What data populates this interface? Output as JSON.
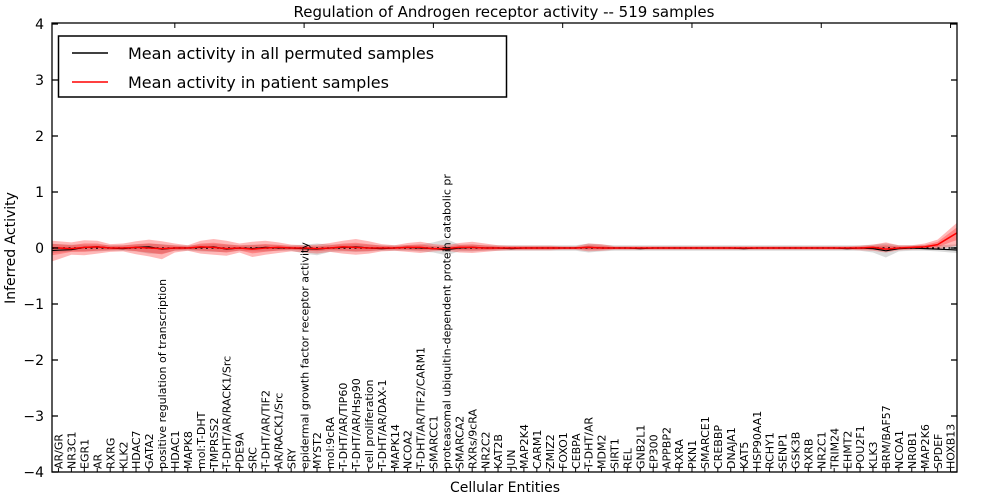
{
  "figure": {
    "background": "#ffffff",
    "frame_color": "#000000"
  },
  "legend": {
    "items": [
      {
        "label": "Mean activity in all permuted samples",
        "color": "#000000"
      },
      {
        "label": "Mean activity in patient samples",
        "color": "#ff0000"
      }
    ]
  },
  "chart_data": {
    "type": "line",
    "title": "Regulation of Androgen receptor activity -- 519 samples",
    "xlabel": "Cellular Entities",
    "ylabel": "Inferred Activity",
    "ylim": [
      -4,
      4
    ],
    "yticks": [
      -4,
      -3,
      -2,
      -1,
      0,
      1,
      2,
      3,
      4
    ],
    "grid": false,
    "legend_position": "upper left",
    "zero_line": true,
    "categories": [
      "AR/GR",
      "NR3C1",
      "EGR1",
      "AR",
      "RXRG",
      "KLK2",
      "HDAC7",
      "GATA2",
      "positive regulation of transcription",
      "HDAC1",
      "MAPK8",
      "mol:T-DHT",
      "TMPRSS2",
      "T-DHT/AR/RACK1/Src",
      "PDE9A",
      "SRC",
      "T-DHT/AR/TIF2",
      "AR/RACK1/Src",
      "SRY",
      "epidermal growth factor receptor activity",
      "MYST2",
      "mol:9cRA",
      "T-DHT/AR/TIP60",
      "T-DHT/AR/Hsp90",
      "cell proliferation",
      "T-DHT/AR/DAX-1",
      "MAPK14",
      "NCOA2",
      "T-DHT/AR/TIF2/CARM1",
      "SMARCC1",
      "proteasomal ubiquitin-dependent protein catabolic pr",
      "SMARCA2",
      "RXRs/9cRA",
      "NR2C2",
      "KAT2B",
      "JUN",
      "MAP2K4",
      "CARM1",
      "ZMIZ2",
      "FOXO1",
      "CEBPA",
      "T-DHT/AR",
      "MDM2",
      "SIRT1",
      "REL",
      "GNB2L1",
      "EP300",
      "APPBP2",
      "RXRA",
      "PKN1",
      "SMARCE1",
      "CREBBP",
      "DNAJA1",
      "KAT5",
      "HSP90AA1",
      "RCHY1",
      "SENP1",
      "GSK3B",
      "RXRB",
      "NR2C1",
      "TRIM24",
      "EHMT2",
      "POU2F1",
      "KLK3",
      "BRM/BAF57",
      "NCOA1",
      "NR0B1",
      "MAP2K6",
      "SPDEF",
      "HOXB13"
    ],
    "series": [
      {
        "name": "Mean activity in all permuted samples",
        "color": "#000000",
        "values": [
          -0.04,
          -0.03,
          0.01,
          0.02,
          0,
          -0.01,
          0.01,
          0.02,
          -0.02,
          0,
          0,
          0.01,
          0.02,
          -0.02,
          0,
          -0.01,
          0.01,
          0,
          0,
          -0.01,
          -0.02,
          0,
          0.01,
          0.02,
          0,
          -0.01,
          0,
          0.01,
          0,
          -0.01,
          -0.03,
          0,
          0.01,
          0,
          0,
          -0.01,
          0,
          0,
          0,
          0,
          0,
          0.01,
          0,
          0,
          0,
          -0.01,
          0,
          0,
          0,
          0,
          0,
          0,
          0,
          -0.01,
          0,
          0,
          0,
          0,
          0,
          0,
          0,
          -0.01,
          0,
          -0.01,
          -0.05,
          -0.01,
          0,
          -0.01,
          -0.02,
          -0.03
        ]
      },
      {
        "name": "Mean activity in patient samples",
        "color": "#ff0000",
        "values": [
          0,
          -0.01,
          0.01,
          0.02,
          0,
          0,
          0.01,
          0,
          -0.01,
          0,
          0,
          0.02,
          0.01,
          -0.01,
          0,
          -0.02,
          0,
          0.01,
          0,
          0,
          -0.01,
          0,
          0.02,
          0.01,
          0,
          0,
          0,
          0.01,
          0.01,
          -0.01,
          -0.01,
          0.01,
          0.01,
          0,
          0,
          0,
          0,
          0,
          0,
          0,
          0,
          0.01,
          0,
          0,
          0,
          0,
          0,
          0,
          0,
          0,
          0,
          0,
          0,
          0,
          0,
          0,
          0,
          0,
          0,
          0,
          0,
          0,
          0,
          0.01,
          -0.02,
          0,
          0.01,
          0.02,
          0.06,
          0.2
        ]
      }
    ],
    "bands": [
      {
        "name": "permuted-samples-spread",
        "color": "#888888",
        "opacity": 0.3,
        "upper": [
          0.07,
          0.06,
          0.06,
          0.06,
          0.05,
          0.05,
          0.06,
          0.08,
          0.07,
          0.05,
          0.05,
          0.06,
          0.07,
          0.06,
          0.05,
          0.06,
          0.06,
          0.05,
          0.05,
          0.06,
          0.08,
          0.06,
          0.06,
          0.07,
          0.06,
          0.05,
          0.05,
          0.05,
          0.06,
          0.1,
          0.16,
          0.06,
          0.06,
          0.05,
          0.05,
          0.05,
          0.05,
          0.05,
          0.05,
          0.05,
          0.05,
          0.08,
          0.06,
          0.05,
          0.05,
          0.05,
          0.05,
          0.05,
          0.05,
          0.05,
          0.05,
          0.05,
          0.05,
          0.05,
          0.05,
          0.05,
          0.05,
          0.05,
          0.05,
          0.05,
          0.05,
          0.05,
          0.05,
          0.06,
          0.08,
          0.05,
          0.05,
          0.05,
          0.05,
          0.06
        ],
        "lower": [
          -0.08,
          -0.06,
          -0.06,
          -0.06,
          -0.05,
          -0.05,
          -0.06,
          -0.1,
          -0.1,
          -0.05,
          -0.05,
          -0.06,
          -0.07,
          -0.07,
          -0.05,
          -0.06,
          -0.06,
          -0.05,
          -0.05,
          -0.1,
          -0.13,
          -0.07,
          -0.06,
          -0.07,
          -0.06,
          -0.05,
          -0.05,
          -0.05,
          -0.06,
          -0.08,
          -0.13,
          -0.06,
          -0.06,
          -0.05,
          -0.05,
          -0.05,
          -0.05,
          -0.05,
          -0.05,
          -0.05,
          -0.05,
          -0.08,
          -0.06,
          -0.05,
          -0.05,
          -0.05,
          -0.05,
          -0.05,
          -0.05,
          -0.05,
          -0.05,
          -0.05,
          -0.05,
          -0.05,
          -0.05,
          -0.05,
          -0.05,
          -0.05,
          -0.05,
          -0.05,
          -0.05,
          -0.05,
          -0.05,
          -0.08,
          -0.17,
          -0.06,
          -0.05,
          -0.05,
          -0.06,
          -0.08
        ]
      },
      {
        "name": "patient-samples-spread",
        "color": "#ff0000",
        "opacity": 0.28,
        "upper": [
          0.12,
          0.1,
          0.14,
          0.13,
          0.07,
          0.08,
          0.12,
          0.15,
          0.12,
          0.08,
          0.05,
          0.13,
          0.16,
          0.13,
          0.08,
          0.11,
          0.13,
          0.1,
          0.06,
          0.05,
          0.06,
          0.09,
          0.13,
          0.16,
          0.12,
          0.07,
          0.05,
          0.09,
          0.11,
          0.07,
          0.05,
          0.09,
          0.11,
          0.08,
          0.05,
          0.04,
          0.04,
          0.04,
          0.04,
          0.03,
          0.03,
          0.08,
          0.07,
          0.03,
          0.03,
          0.03,
          0.03,
          0.03,
          0.03,
          0.03,
          0.03,
          0.03,
          0.03,
          0.03,
          0.03,
          0.03,
          0.03,
          0.03,
          0.03,
          0.03,
          0.03,
          0.03,
          0.04,
          0.06,
          0.1,
          0.05,
          0.05,
          0.08,
          0.15,
          0.35
        ],
        "lower": [
          -0.2,
          -0.12,
          -0.13,
          -0.1,
          -0.07,
          -0.06,
          -0.11,
          -0.15,
          -0.2,
          -0.08,
          -0.05,
          -0.1,
          -0.12,
          -0.14,
          -0.08,
          -0.16,
          -0.12,
          -0.09,
          -0.06,
          -0.08,
          -0.1,
          -0.07,
          -0.1,
          -0.12,
          -0.1,
          -0.06,
          -0.05,
          -0.07,
          -0.09,
          -0.06,
          -0.05,
          -0.08,
          -0.09,
          -0.07,
          -0.05,
          -0.04,
          -0.04,
          -0.04,
          -0.04,
          -0.03,
          -0.03,
          -0.06,
          -0.05,
          -0.03,
          -0.03,
          -0.03,
          -0.03,
          -0.03,
          -0.03,
          -0.03,
          -0.03,
          -0.03,
          -0.03,
          -0.03,
          -0.03,
          -0.03,
          -0.03,
          -0.03,
          -0.03,
          -0.03,
          -0.03,
          -0.03,
          -0.04,
          -0.05,
          -0.08,
          -0.04,
          -0.03,
          -0.02,
          -0.02,
          0.02
        ]
      }
    ]
  }
}
